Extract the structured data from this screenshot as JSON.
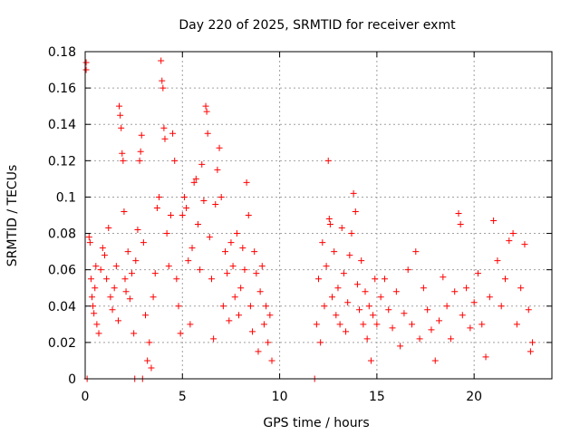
{
  "chart_data": {
    "type": "scatter",
    "title": "Day 220 of 2025, SRMTID for receiver exmt",
    "xlabel": "GPS time / hours",
    "ylabel": "SRMTID / TECUs",
    "xlim": [
      0,
      24
    ],
    "ylim": [
      0,
      0.18
    ],
    "grid": true,
    "x_ticks": [
      0,
      5,
      10,
      15,
      20
    ],
    "x_tick_labels": [
      "0",
      "5",
      "10",
      "15",
      "20"
    ],
    "y_ticks": [
      0,
      0.02,
      0.04,
      0.06,
      0.08,
      0.1,
      0.12,
      0.14,
      0.16,
      0.18
    ],
    "y_tick_labels": [
      "0",
      "0.02",
      "0.04",
      "0.06",
      "0.08",
      "0.1",
      "0.12",
      "0.14",
      "0.16",
      "0.18"
    ],
    "marker": "plus",
    "series": [
      {
        "name": "SRMTID",
        "color": "#ff0000",
        "points": [
          [
            0.05,
            0.174
          ],
          [
            0.05,
            0.17
          ],
          [
            0.1,
            0.0
          ],
          [
            0.2,
            0.078
          ],
          [
            0.25,
            0.075
          ],
          [
            0.3,
            0.055
          ],
          [
            0.35,
            0.045
          ],
          [
            0.4,
            0.04
          ],
          [
            0.45,
            0.036
          ],
          [
            0.5,
            0.05
          ],
          [
            0.55,
            0.062
          ],
          [
            0.6,
            0.03
          ],
          [
            0.7,
            0.025
          ],
          [
            0.8,
            0.06
          ],
          [
            0.9,
            0.072
          ],
          [
            1.0,
            0.068
          ],
          [
            1.1,
            0.055
          ],
          [
            1.2,
            0.083
          ],
          [
            1.3,
            0.045
          ],
          [
            1.4,
            0.038
          ],
          [
            1.5,
            0.05
          ],
          [
            1.6,
            0.062
          ],
          [
            1.7,
            0.032
          ],
          [
            1.75,
            0.15
          ],
          [
            1.8,
            0.145
          ],
          [
            1.85,
            0.138
          ],
          [
            1.9,
            0.124
          ],
          [
            1.95,
            0.12
          ],
          [
            2.0,
            0.092
          ],
          [
            2.05,
            0.055
          ],
          [
            2.1,
            0.048
          ],
          [
            2.2,
            0.07
          ],
          [
            2.3,
            0.044
          ],
          [
            2.4,
            0.058
          ],
          [
            2.5,
            0.025
          ],
          [
            2.55,
            0.0
          ],
          [
            2.6,
            0.065
          ],
          [
            2.7,
            0.082
          ],
          [
            2.8,
            0.12
          ],
          [
            2.85,
            0.125
          ],
          [
            2.9,
            0.134
          ],
          [
            2.95,
            0.0
          ],
          [
            3.0,
            0.075
          ],
          [
            3.1,
            0.035
          ],
          [
            3.2,
            0.01
          ],
          [
            3.3,
            0.02
          ],
          [
            3.4,
            0.006
          ],
          [
            3.5,
            0.045
          ],
          [
            3.6,
            0.058
          ],
          [
            3.7,
            0.094
          ],
          [
            3.8,
            0.1
          ],
          [
            3.9,
            0.175
          ],
          [
            3.95,
            0.164
          ],
          [
            4.0,
            0.16
          ],
          [
            4.05,
            0.138
          ],
          [
            4.1,
            0.132
          ],
          [
            4.2,
            0.08
          ],
          [
            4.3,
            0.062
          ],
          [
            4.4,
            0.09
          ],
          [
            4.5,
            0.135
          ],
          [
            4.6,
            0.12
          ],
          [
            4.7,
            0.055
          ],
          [
            4.8,
            0.04
          ],
          [
            4.9,
            0.025
          ],
          [
            5.0,
            0.09
          ],
          [
            5.1,
            0.1
          ],
          [
            5.2,
            0.094
          ],
          [
            5.3,
            0.065
          ],
          [
            5.4,
            0.03
          ],
          [
            5.5,
            0.072
          ],
          [
            5.6,
            0.108
          ],
          [
            5.7,
            0.11
          ],
          [
            5.8,
            0.085
          ],
          [
            5.9,
            0.06
          ],
          [
            6.0,
            0.118
          ],
          [
            6.1,
            0.098
          ],
          [
            6.2,
            0.15
          ],
          [
            6.25,
            0.147
          ],
          [
            6.3,
            0.135
          ],
          [
            6.4,
            0.078
          ],
          [
            6.5,
            0.055
          ],
          [
            6.6,
            0.022
          ],
          [
            6.7,
            0.096
          ],
          [
            6.8,
            0.115
          ],
          [
            6.9,
            0.127
          ],
          [
            7.0,
            0.1
          ],
          [
            7.1,
            0.04
          ],
          [
            7.2,
            0.07
          ],
          [
            7.3,
            0.058
          ],
          [
            7.4,
            0.032
          ],
          [
            7.5,
            0.075
          ],
          [
            7.6,
            0.062
          ],
          [
            7.7,
            0.045
          ],
          [
            7.8,
            0.08
          ],
          [
            7.9,
            0.035
          ],
          [
            8.0,
            0.05
          ],
          [
            8.1,
            0.072
          ],
          [
            8.2,
            0.06
          ],
          [
            8.3,
            0.108
          ],
          [
            8.4,
            0.09
          ],
          [
            8.5,
            0.04
          ],
          [
            8.6,
            0.026
          ],
          [
            8.7,
            0.07
          ],
          [
            8.8,
            0.058
          ],
          [
            8.9,
            0.015
          ],
          [
            9.0,
            0.048
          ],
          [
            9.1,
            0.062
          ],
          [
            9.2,
            0.03
          ],
          [
            9.3,
            0.04
          ],
          [
            9.4,
            0.02
          ],
          [
            9.5,
            0.035
          ],
          [
            9.6,
            0.01
          ],
          [
            11.8,
            0.0
          ],
          [
            11.9,
            0.03
          ],
          [
            12.0,
            0.055
          ],
          [
            12.1,
            0.02
          ],
          [
            12.2,
            0.075
          ],
          [
            12.3,
            0.04
          ],
          [
            12.4,
            0.062
          ],
          [
            12.5,
            0.12
          ],
          [
            12.55,
            0.088
          ],
          [
            12.6,
            0.085
          ],
          [
            12.7,
            0.045
          ],
          [
            12.8,
            0.07
          ],
          [
            12.9,
            0.035
          ],
          [
            13.0,
            0.05
          ],
          [
            13.1,
            0.03
          ],
          [
            13.2,
            0.083
          ],
          [
            13.3,
            0.058
          ],
          [
            13.4,
            0.026
          ],
          [
            13.5,
            0.042
          ],
          [
            13.6,
            0.068
          ],
          [
            13.7,
            0.08
          ],
          [
            13.8,
            0.102
          ],
          [
            13.9,
            0.092
          ],
          [
            14.0,
            0.052
          ],
          [
            14.1,
            0.038
          ],
          [
            14.2,
            0.065
          ],
          [
            14.3,
            0.03
          ],
          [
            14.4,
            0.048
          ],
          [
            14.5,
            0.022
          ],
          [
            14.6,
            0.04
          ],
          [
            14.7,
            0.01
          ],
          [
            14.8,
            0.035
          ],
          [
            14.9,
            0.055
          ],
          [
            15.0,
            0.03
          ],
          [
            15.2,
            0.045
          ],
          [
            15.4,
            0.055
          ],
          [
            15.6,
            0.038
          ],
          [
            15.8,
            0.028
          ],
          [
            16.0,
            0.048
          ],
          [
            16.2,
            0.018
          ],
          [
            16.4,
            0.036
          ],
          [
            16.6,
            0.06
          ],
          [
            16.8,
            0.03
          ],
          [
            17.0,
            0.07
          ],
          [
            17.2,
            0.022
          ],
          [
            17.4,
            0.05
          ],
          [
            17.6,
            0.038
          ],
          [
            17.8,
            0.027
          ],
          [
            18.0,
            0.01
          ],
          [
            18.2,
            0.032
          ],
          [
            18.4,
            0.056
          ],
          [
            18.6,
            0.04
          ],
          [
            18.8,
            0.022
          ],
          [
            19.0,
            0.048
          ],
          [
            19.2,
            0.091
          ],
          [
            19.3,
            0.085
          ],
          [
            19.4,
            0.035
          ],
          [
            19.6,
            0.05
          ],
          [
            19.8,
            0.028
          ],
          [
            20.0,
            0.042
          ],
          [
            20.2,
            0.058
          ],
          [
            20.4,
            0.03
          ],
          [
            20.6,
            0.012
          ],
          [
            20.8,
            0.045
          ],
          [
            21.0,
            0.087
          ],
          [
            21.2,
            0.065
          ],
          [
            21.4,
            0.04
          ],
          [
            21.6,
            0.055
          ],
          [
            21.8,
            0.076
          ],
          [
            22.0,
            0.08
          ],
          [
            22.2,
            0.03
          ],
          [
            22.4,
            0.05
          ],
          [
            22.6,
            0.074
          ],
          [
            22.8,
            0.038
          ],
          [
            22.9,
            0.015
          ],
          [
            23.0,
            0.02
          ]
        ]
      }
    ]
  }
}
